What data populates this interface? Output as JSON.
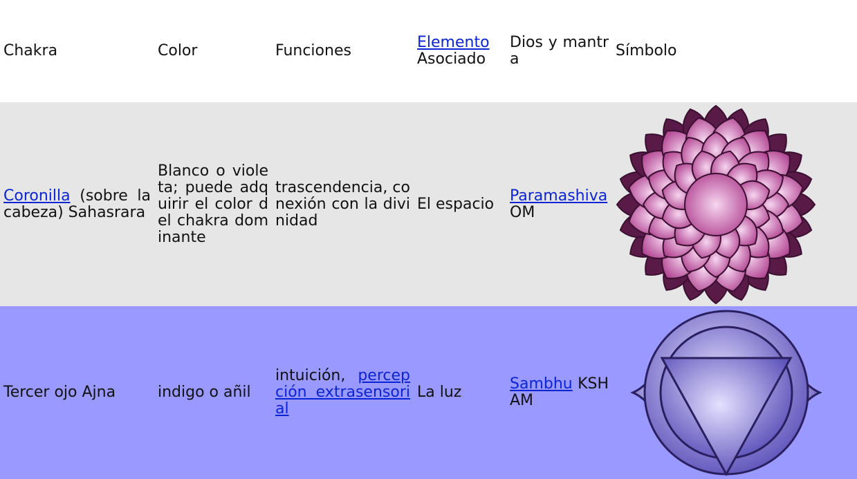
{
  "table": {
    "header": {
      "chakra": "Chakra",
      "color": "Color",
      "functions": "Funciones",
      "element": {
        "link": "Elemento",
        "text": "Asociado"
      },
      "god_mantra": "Dios y mantra",
      "symbol": "Símbolo"
    },
    "rows": [
      {
        "chakra": {
          "link": "Coronilla",
          "text": "(sobre la cabeza) Sahasrara"
        },
        "color": "Blanco o violeta; puede adquirir el color del chakra dominante",
        "functions": {
          "text": "trascendencia, conexión con la divinidad"
        },
        "element": "El espacio",
        "god": {
          "link": "Paramashiva",
          "text": "OM"
        }
      },
      {
        "chakra": {
          "text": "Tercer ojo Ajna"
        },
        "color": "indigo o añil",
        "functions": {
          "text": "intuición,",
          "link": "percepción extrasensorial"
        },
        "element": "La luz",
        "god": {
          "link": "Sambhu",
          "text": "KSHAM"
        }
      }
    ]
  }
}
